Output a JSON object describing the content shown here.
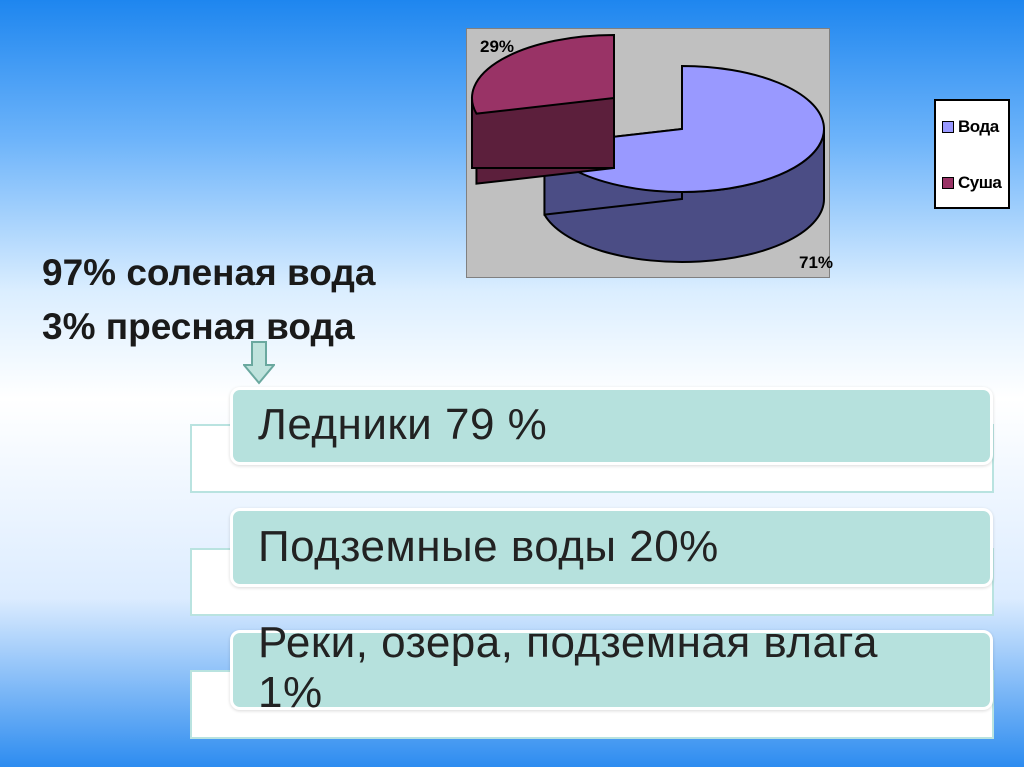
{
  "chart_data": {
    "type": "pie",
    "title": "",
    "categories": [
      "Вода",
      "Суша"
    ],
    "values": [
      71,
      29
    ],
    "data_labels": [
      "71%",
      "29%"
    ],
    "colors": {
      "Вода": "#9999ff",
      "Суша": "#993366"
    },
    "legend_position": "right"
  },
  "legend": [
    {
      "label": "Вода",
      "color": "#9999ff"
    },
    {
      "label": "Суша",
      "color": "#993366"
    }
  ],
  "headline": {
    "line1": "97% соленая вода",
    "line2": "3% пресная вода"
  },
  "boxes": [
    {
      "text": "Ледники 79 %"
    },
    {
      "text": "Подземные воды 20%"
    },
    {
      "text": "Реки, озера, подземная влага 1%"
    }
  ],
  "icons": {
    "arrow": "down-arrow-icon"
  }
}
